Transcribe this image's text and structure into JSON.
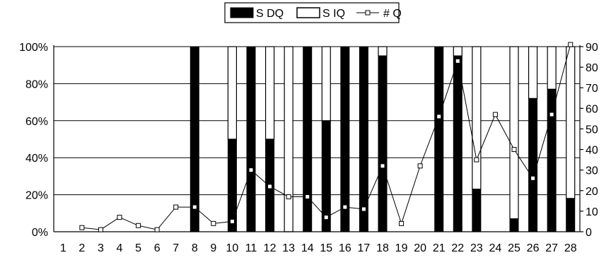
{
  "chart_data": {
    "type": "bar",
    "stacked": true,
    "categories": [
      "1",
      "2",
      "3",
      "4",
      "5",
      "6",
      "7",
      "8",
      "9",
      "10",
      "11",
      "12",
      "13",
      "14",
      "15",
      "16",
      "17",
      "18",
      "19",
      "20",
      "21",
      "22",
      "23",
      "24",
      "25",
      "26",
      "27",
      "28"
    ],
    "series": [
      {
        "name": "S DQ",
        "type": "bar",
        "axis": "left",
        "color": "#000000",
        "values": [
          0,
          0,
          0,
          0,
          0,
          0,
          0,
          100,
          0,
          50,
          100,
          50,
          0,
          100,
          60,
          100,
          100,
          95,
          0,
          0,
          100,
          95,
          23,
          0,
          7,
          72,
          77,
          18
        ]
      },
      {
        "name": "S IQ",
        "type": "bar",
        "axis": "left",
        "color": "#ffffff",
        "values": [
          0,
          0,
          0,
          0,
          0,
          0,
          0,
          0,
          0,
          50,
          0,
          50,
          100,
          0,
          40,
          0,
          0,
          5,
          0,
          0,
          0,
          5,
          77,
          0,
          93,
          28,
          23,
          82
        ]
      },
      {
        "name": "# Q",
        "type": "line",
        "axis": "right",
        "marker": "square",
        "values": [
          null,
          2,
          1,
          7,
          3,
          1,
          12,
          12,
          4,
          5,
          30,
          22,
          17,
          17,
          7,
          12,
          11,
          32,
          4,
          32,
          56,
          83,
          35,
          57,
          40,
          26,
          57,
          91
        ]
      }
    ],
    "y_left": {
      "ticks": [
        "0%",
        "20%",
        "40%",
        "60%",
        "80%",
        "100%"
      ],
      "lim": [
        0,
        100
      ]
    },
    "y_right": {
      "ticks": [
        "0",
        "10",
        "20",
        "30",
        "40",
        "50",
        "60",
        "70",
        "80",
        "90"
      ],
      "lim": [
        0,
        90
      ]
    },
    "grid": true,
    "legend": {
      "position": "top-center",
      "entries": [
        "S DQ",
        "S IQ",
        "# Q"
      ]
    }
  }
}
